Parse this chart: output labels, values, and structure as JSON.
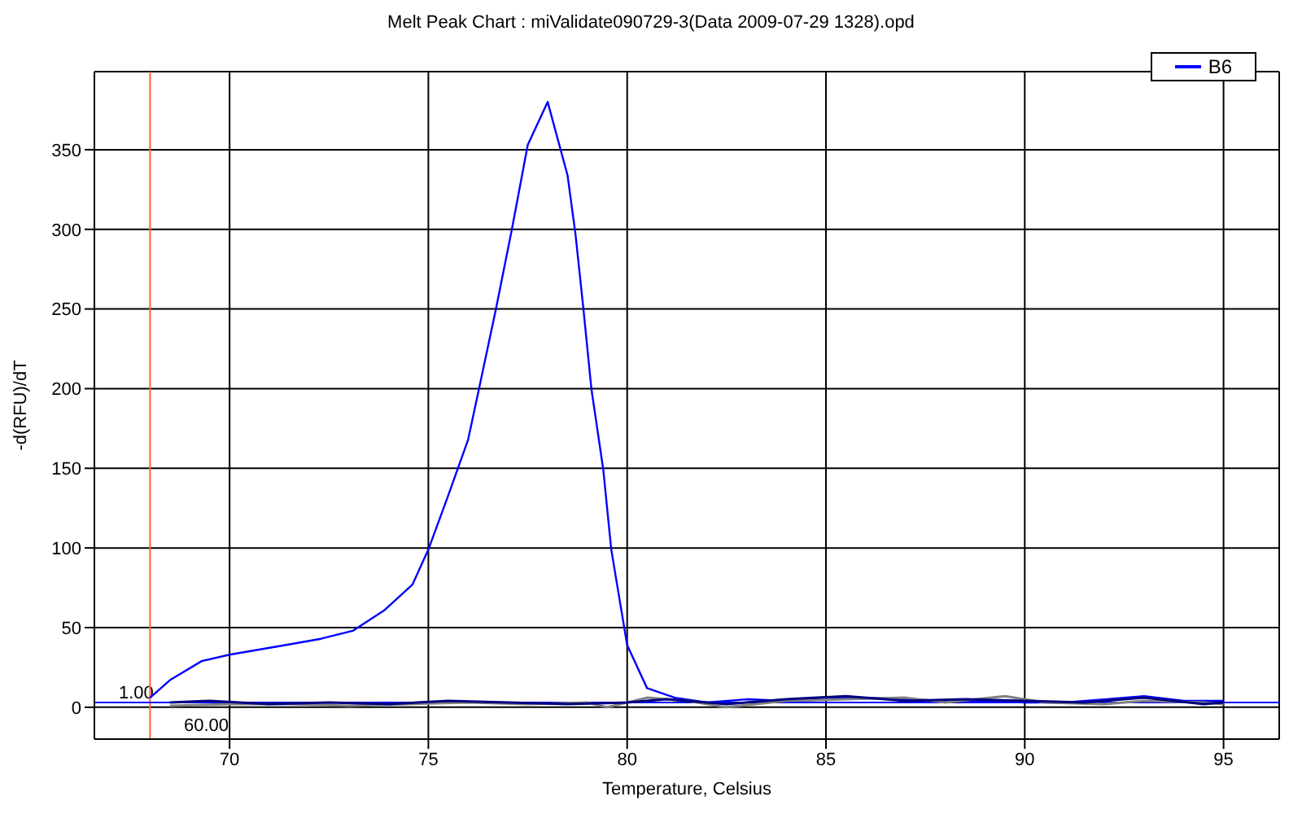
{
  "chart_data": {
    "type": "line",
    "title": "Melt Peak Chart : miValidate090729-3(Data 2009-07-29 1328).opd",
    "xlabel": "Temperature, Celsius",
    "ylabel": "-d(RFU)/dT",
    "xlim": [
      66.6,
      96.4
    ],
    "xticks": [
      70,
      75,
      80,
      85,
      90,
      95
    ],
    "ylim": [
      -20,
      399
    ],
    "yticks": [
      0,
      50,
      100,
      150,
      200,
      250,
      300,
      350
    ],
    "grid": true,
    "legend": "top right",
    "marker": "none",
    "line_style": "solid",
    "series": [
      {
        "name": "B6",
        "color": "#0000ff",
        "x": [
          68,
          68.5,
          69.3,
          70,
          71.4,
          72.3,
          73.1,
          73.9,
          74.6,
          75,
          75.5,
          76,
          76.3,
          76.7,
          77.1,
          77.5,
          78,
          78.5,
          78.7,
          78.9,
          79.1,
          79.4,
          79.6,
          80,
          80.5,
          81.2,
          82,
          83,
          84,
          85,
          86,
          87,
          88,
          89,
          90,
          91,
          92,
          93,
          94,
          95
        ],
        "values": [
          6,
          17,
          29,
          33,
          39,
          43,
          48,
          61,
          77,
          99,
          133,
          168,
          203,
          250,
          300,
          353,
          380,
          334,
          297,
          250,
          200,
          149,
          99,
          39,
          12,
          6,
          3,
          5,
          4,
          6,
          6,
          5,
          4,
          4,
          3,
          3,
          5,
          7,
          4,
          4
        ]
      },
      {
        "color": "#808080",
        "x": [
          68.5,
          70,
          71.5,
          73,
          74.5,
          76,
          77.5,
          79,
          79.5,
          80.5,
          81.5,
          82.5,
          84,
          85.5,
          87,
          88,
          89.5,
          90.5,
          92,
          93,
          94.5,
          95
        ],
        "values": [
          1,
          2,
          2,
          1,
          2,
          3,
          2,
          3,
          0,
          6,
          4,
          0,
          4,
          5,
          6,
          3,
          7,
          3,
          2,
          4,
          3,
          2
        ]
      },
      {
        "color": "#000080",
        "x": [
          68.5,
          69.5,
          71,
          72.5,
          74,
          75.5,
          77,
          78.5,
          80,
          81,
          82.5,
          84,
          85.5,
          87,
          88.5,
          90,
          91.5,
          93,
          94.5,
          95
        ],
        "values": [
          3,
          4,
          2,
          3,
          2,
          4,
          3,
          2,
          3,
          5,
          2,
          5,
          7,
          4,
          5,
          4,
          3,
          6,
          2,
          3
        ]
      }
    ],
    "ref_lines": [
      {
        "axis": "x",
        "value": 68,
        "color": "#ff6040"
      },
      {
        "axis": "y",
        "value": 3,
        "color": "#0000ff"
      }
    ],
    "annotations": [
      "1.00",
      "60.00"
    ]
  }
}
